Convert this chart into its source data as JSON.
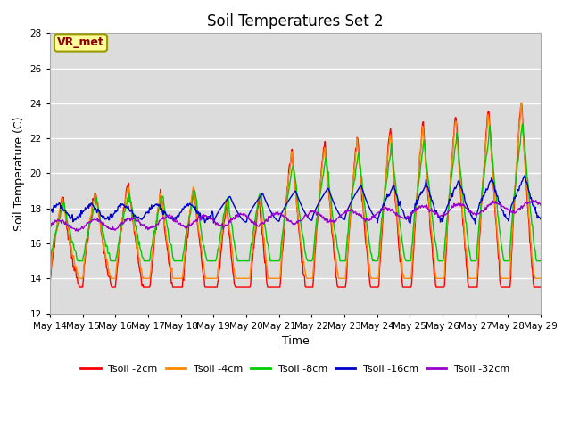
{
  "title": "Soil Temperatures Set 2",
  "xlabel": "Time",
  "ylabel": "Soil Temperature (C)",
  "ylim": [
    12,
    28
  ],
  "yticks": [
    12,
    14,
    16,
    18,
    20,
    22,
    24,
    26,
    28
  ],
  "background_color": "#dcdcdc",
  "annotation_text": "VR_met",
  "annotation_box_color": "#ffff99",
  "annotation_text_color": "#8b0000",
  "annotation_edge_color": "#999900",
  "series_colors": [
    "#ff0000",
    "#ff8800",
    "#00cc00",
    "#0000cc",
    "#9900cc"
  ],
  "series_labels": [
    "Tsoil -2cm",
    "Tsoil -4cm",
    "Tsoil -8cm",
    "Tsoil -16cm",
    "Tsoil -32cm"
  ],
  "x_tick_labels": [
    "May 14",
    "May 15",
    "May 16",
    "May 17",
    "May 18",
    "May 19",
    "May 20",
    "May 21",
    "May 22",
    "May 23",
    "May 24",
    "May 25",
    "May 26",
    "May 27",
    "May 28",
    "May 29"
  ]
}
